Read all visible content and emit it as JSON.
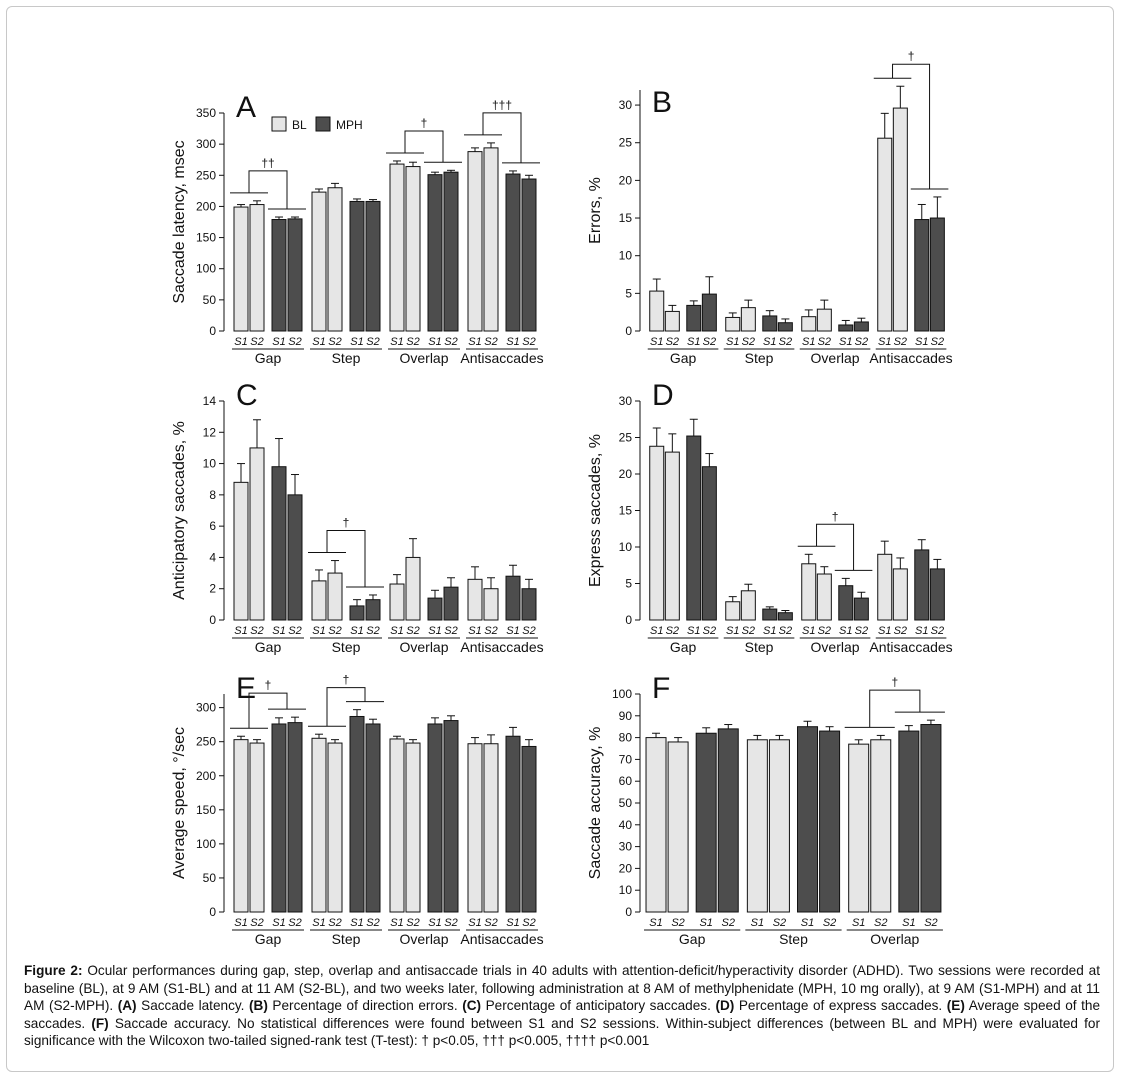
{
  "legend": {
    "bl": "BL",
    "mph": "MPH"
  },
  "session_labels": [
    "S1",
    "S2"
  ],
  "colors": {
    "bl": "#e6e6e6",
    "mph": "#4d4d4d",
    "stroke": "#111111"
  },
  "chart_data": [
    {
      "panel": "A",
      "type": "bar",
      "ylabel": "Saccade latency, msec",
      "ylim": [
        0,
        350
      ],
      "yticks": [
        0,
        50,
        100,
        150,
        200,
        250,
        300,
        350
      ],
      "groups": [
        "Gap",
        "Step",
        "Overlap",
        "Antisaccades"
      ],
      "series": [
        {
          "name": "BL",
          "session": "S1",
          "values": [
            199,
            223,
            268,
            288
          ],
          "errors": [
            4,
            5,
            5,
            6
          ]
        },
        {
          "name": "BL",
          "session": "S2",
          "values": [
            203,
            230,
            264,
            294
          ],
          "errors": [
            6,
            7,
            7,
            8
          ]
        },
        {
          "name": "MPH",
          "session": "S1",
          "values": [
            179,
            208,
            251,
            252
          ],
          "errors": [
            4,
            4,
            4,
            5
          ]
        },
        {
          "name": "MPH",
          "session": "S2",
          "values": [
            180,
            208,
            255,
            244
          ],
          "errors": [
            3,
            3,
            3,
            6
          ]
        }
      ],
      "significance": [
        {
          "group": "Gap",
          "label": "††"
        },
        {
          "group": "Overlap",
          "label": "†"
        },
        {
          "group": "Antisaccades",
          "label": "†††"
        }
      ],
      "legend": "top-left"
    },
    {
      "panel": "B",
      "type": "bar",
      "ylabel": "Errors, %",
      "ylim": [
        0,
        32
      ],
      "yticks": [
        0,
        5,
        10,
        15,
        20,
        25,
        30
      ],
      "groups": [
        "Gap",
        "Step",
        "Overlap",
        "Antisaccades"
      ],
      "series": [
        {
          "name": "BL",
          "session": "S1",
          "values": [
            5.3,
            1.8,
            1.9,
            25.6
          ],
          "errors": [
            1.6,
            0.6,
            0.9,
            3.3
          ]
        },
        {
          "name": "BL",
          "session": "S2",
          "values": [
            2.6,
            3.1,
            2.9,
            29.6
          ],
          "errors": [
            0.8,
            1.0,
            1.2,
            2.9
          ]
        },
        {
          "name": "MPH",
          "session": "S1",
          "values": [
            3.4,
            2.0,
            0.8,
            14.8
          ],
          "errors": [
            0.6,
            0.7,
            0.6,
            2.0
          ]
        },
        {
          "name": "MPH",
          "session": "S2",
          "values": [
            4.9,
            1.1,
            1.2,
            15.0
          ],
          "errors": [
            2.3,
            0.5,
            0.5,
            2.8
          ]
        }
      ],
      "significance": [
        {
          "group": "Antisaccades",
          "label": "†"
        }
      ]
    },
    {
      "panel": "C",
      "type": "bar",
      "ylabel": "Anticipatory saccades, %",
      "ylim": [
        0,
        14
      ],
      "yticks": [
        0,
        2,
        4,
        6,
        8,
        10,
        12,
        14
      ],
      "groups": [
        "Gap",
        "Step",
        "Overlap",
        "Antisaccades"
      ],
      "series": [
        {
          "name": "BL",
          "session": "S1",
          "values": [
            8.8,
            2.5,
            2.3,
            2.6
          ],
          "errors": [
            1.2,
            0.7,
            0.6,
            0.8
          ]
        },
        {
          "name": "BL",
          "session": "S2",
          "values": [
            11.0,
            3.0,
            4.0,
            2.0
          ],
          "errors": [
            1.8,
            0.8,
            1.2,
            0.7
          ]
        },
        {
          "name": "MPH",
          "session": "S1",
          "values": [
            9.8,
            0.9,
            1.4,
            2.8
          ],
          "errors": [
            1.8,
            0.4,
            0.5,
            0.7
          ]
        },
        {
          "name": "MPH",
          "session": "S2",
          "values": [
            8.0,
            1.3,
            2.1,
            2.0
          ],
          "errors": [
            1.3,
            0.3,
            0.6,
            0.6
          ]
        }
      ],
      "significance": [
        {
          "group": "Step",
          "label": "†"
        }
      ]
    },
    {
      "panel": "D",
      "type": "bar",
      "ylabel": "Express saccades, %",
      "ylim": [
        0,
        30
      ],
      "yticks": [
        0,
        5,
        10,
        15,
        20,
        25,
        30
      ],
      "groups": [
        "Gap",
        "Step",
        "Overlap",
        "Antisaccades"
      ],
      "series": [
        {
          "name": "BL",
          "session": "S1",
          "values": [
            23.8,
            2.5,
            7.7,
            9.0
          ],
          "errors": [
            2.5,
            0.7,
            1.3,
            1.8
          ]
        },
        {
          "name": "BL",
          "session": "S2",
          "values": [
            23.0,
            4.0,
            6.3,
            7.0
          ],
          "errors": [
            2.5,
            0.9,
            1.0,
            1.5
          ]
        },
        {
          "name": "MPH",
          "session": "S1",
          "values": [
            25.2,
            1.5,
            4.7,
            9.6
          ],
          "errors": [
            2.3,
            0.3,
            1.0,
            1.4
          ]
        },
        {
          "name": "MPH",
          "session": "S2",
          "values": [
            21.0,
            1.0,
            3.0,
            7.0
          ],
          "errors": [
            1.8,
            0.3,
            0.8,
            1.3
          ]
        }
      ],
      "significance": [
        {
          "group": "Overlap",
          "label": "†"
        }
      ]
    },
    {
      "panel": "E",
      "type": "bar",
      "ylabel": "Average speed, °/sec",
      "ylim": [
        0,
        320
      ],
      "yticks": [
        0,
        50,
        100,
        150,
        200,
        250,
        300
      ],
      "groups": [
        "Gap",
        "Step",
        "Overlap",
        "Antisaccades"
      ],
      "series": [
        {
          "name": "BL",
          "session": "S1",
          "values": [
            253,
            255,
            254,
            247
          ],
          "errors": [
            5,
            6,
            4,
            9
          ]
        },
        {
          "name": "BL",
          "session": "S2",
          "values": [
            248,
            248,
            248,
            247
          ],
          "errors": [
            5,
            5,
            5,
            13
          ]
        },
        {
          "name": "MPH",
          "session": "S1",
          "values": [
            276,
            287,
            276,
            258
          ],
          "errors": [
            9,
            10,
            9,
            13
          ]
        },
        {
          "name": "MPH",
          "session": "S2",
          "values": [
            278,
            276,
            281,
            243
          ],
          "errors": [
            8,
            7,
            7,
            10
          ]
        }
      ],
      "significance": [
        {
          "group": "Gap",
          "label": "†"
        },
        {
          "group": "Step",
          "label": "†"
        }
      ]
    },
    {
      "panel": "F",
      "type": "bar",
      "ylabel": "Saccade accuracy, %",
      "ylim": [
        0,
        100
      ],
      "yticks": [
        0,
        10,
        20,
        30,
        40,
        50,
        60,
        70,
        80,
        90,
        100
      ],
      "groups": [
        "Gap",
        "Step",
        "Overlap"
      ],
      "series": [
        {
          "name": "BL",
          "session": "S1",
          "values": [
            80,
            79,
            77
          ],
          "errors": [
            2,
            2,
            2
          ]
        },
        {
          "name": "BL",
          "session": "S2",
          "values": [
            78,
            79,
            79
          ],
          "errors": [
            2,
            2,
            2
          ]
        },
        {
          "name": "MPH",
          "session": "S1",
          "values": [
            82,
            85,
            83
          ],
          "errors": [
            2.5,
            2.5,
            2.5
          ]
        },
        {
          "name": "MPH",
          "session": "S2",
          "values": [
            84,
            83,
            86
          ],
          "errors": [
            2,
            2,
            2
          ]
        }
      ],
      "significance": [
        {
          "group": "Overlap",
          "label": "†"
        }
      ]
    }
  ],
  "caption": {
    "lead": "Figure 2:",
    "text1": " Ocular performances during gap, step, overlap and antisaccade trials in 40 adults with attention-deficit/hyperactivity disorder (ADHD). Two sessions were recorded at baseline (BL), at 9 AM (S1-BL) and at 11 AM (S2-BL), and two weeks later, following administration at 8 AM of methylphenidate (MPH, 10 mg orally), at 9 AM (S1-MPH) and at 11 AM (S2-MPH). ",
    "a_tag": "(A)",
    "a_text": " Saccade latency. ",
    "b_tag": "(B)",
    "b_text": " Percentage of direction errors. ",
    "c_tag": "(C)",
    "c_text": " Percentage of anticipatory saccades. ",
    "d_tag": "(D)",
    "d_text": " Percentage of express saccades. ",
    "e_tag": "(E)",
    "e_text": " Average speed of the saccades. ",
    "f_tag": "(F)",
    "f_text": " Saccade accuracy. No statistical differences were found between S1 and S2 sessions. Within-subject differences (between BL and MPH) were evaluated for significance with the Wilcoxon two-tailed signed-rank test (T-test): ",
    "sig1": "† p<0.05, ",
    "sig2": "††† p<0.005, ",
    "sig3": "†††† p<0.001"
  }
}
